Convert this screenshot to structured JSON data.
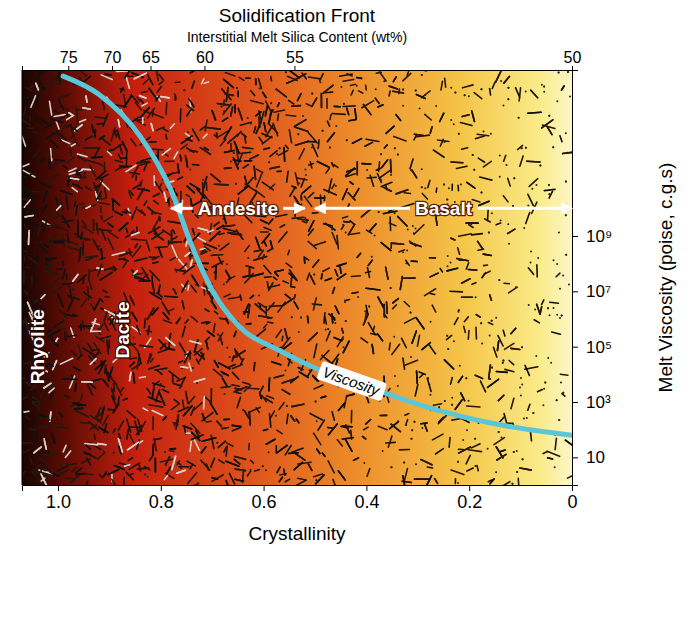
{
  "chart_data": {
    "type": "line",
    "title": "Solidification Front",
    "x2_label": "Interstitial Melt Silica Content (wt%)",
    "x_label": "Crystallinity",
    "y_label": "Melt Viscosity (poise, c.g.s)",
    "xlim": [
      1.07,
      0
    ],
    "xticks": [
      {
        "value": 1,
        "label": "1.0"
      },
      0.8,
      0.6,
      0.4,
      0.2,
      0
    ],
    "x2ticks": [
      {
        "value": 0.98,
        "label": "75"
      },
      {
        "value": 0.895,
        "label": "70"
      },
      {
        "value": 0.82,
        "label": "65"
      },
      {
        "value": 0.715,
        "label": "60"
      },
      {
        "value": 0.54,
        "label": "55"
      },
      {
        "value": 0,
        "label": "50"
      }
    ],
    "ylim": [
      1,
      1000000000000000
    ],
    "yticks": [
      10,
      {
        "value": 1000,
        "label": "10³"
      },
      {
        "value": 100000,
        "label": "10⁵"
      },
      {
        "value": 10000000,
        "label": "10⁷"
      },
      {
        "value": 1000000000,
        "label": "10⁹"
      }
    ],
    "log": "y",
    "grid": false,
    "x": [
      0.99,
      0.92,
      0.84,
      0.78,
      0.74,
      0.7,
      0.65,
      0.57,
      0.49,
      0.37,
      0.26,
      0.14,
      0
    ],
    "series": [
      {
        "name": "Viscosity",
        "color": "#5cc6d6",
        "line_style": "solid",
        "values": [
          600000000000000,
          130000000000000,
          4000000000000,
          45000000000,
          460000000,
          11000000,
          600000,
          74000,
          14000,
          2300,
          500,
          150,
          63
        ]
      }
    ],
    "annotations": [
      {
        "text": "Rhyolite",
        "x": 1.04,
        "y": 100000
      },
      {
        "text": "Dacite",
        "x": 0.875,
        "y": 400000
      },
      {
        "text": "Andesite",
        "x": [
          0.78,
          0.52
        ],
        "y": 10000000000
      },
      {
        "text": "Basalt",
        "x": [
          0.5,
          0
        ],
        "y": 10000000000
      }
    ]
  }
}
